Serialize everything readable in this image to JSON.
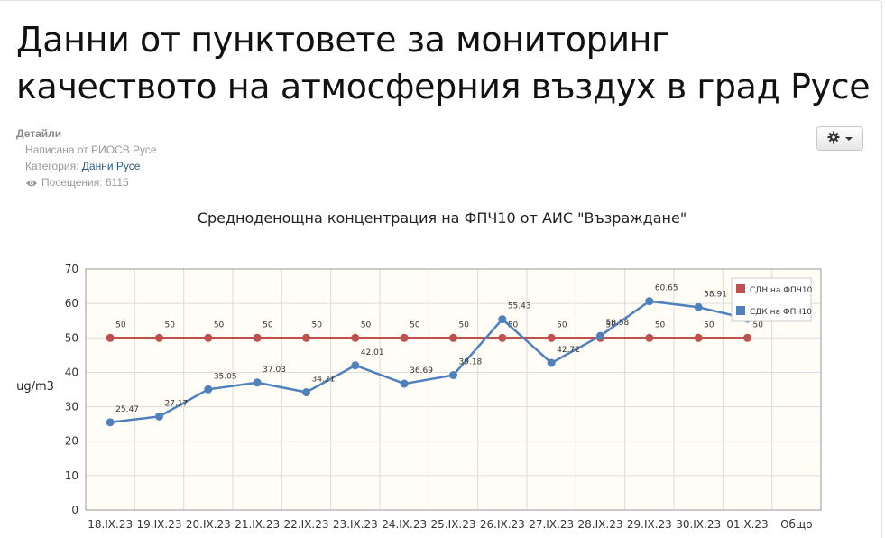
{
  "article": {
    "title": "Данни от пунктовете за мониторинг качеството на атмосферния въздух в град Русе",
    "details_label": "Детайли",
    "author": "Написана от РИОСВ Русе",
    "category_prefix": "Категория: ",
    "category_link": "Данни Русе",
    "hits": "Посещения: 6115"
  },
  "icons": {
    "gear": "gear-icon",
    "caret": "caret-down-icon",
    "eye": "eye-icon"
  },
  "chart_data": {
    "type": "line",
    "title": "Средноденощна концентрация на ФПЧ10 от АИС \"Възраждане\"",
    "ylabel": "ug/m3",
    "xlabel": "",
    "ylim": [
      0,
      70
    ],
    "yticks": [
      0,
      10,
      20,
      30,
      40,
      50,
      60,
      70
    ],
    "categories": [
      "18.IX.23",
      "19.IX.23",
      "20.IX.23",
      "21.IX.23",
      "22.IX.23",
      "23.IX.23",
      "24.IX.23",
      "25.IX.23",
      "26.IX.23",
      "27.IX.23",
      "28.IX.23",
      "29.IX.23",
      "30.IX.23",
      "01.X.23",
      "Общо"
    ],
    "grid": true,
    "legend_position": "top-right",
    "series": [
      {
        "name": "СДН на ФПЧ10",
        "color": "#c0504d",
        "values": [
          50,
          50,
          50,
          50,
          50,
          50,
          50,
          50,
          50,
          50,
          50,
          50,
          50,
          50,
          null
        ],
        "labels": [
          "50",
          "50",
          "50",
          "50",
          "50",
          "50",
          "50",
          "50",
          "50",
          "50",
          "50",
          "50",
          "50",
          "50",
          ""
        ]
      },
      {
        "name": "СДК на ФПЧ10",
        "color": "#4f81bd",
        "values": [
          25.47,
          27.17,
          35.05,
          37.03,
          34.21,
          42.01,
          36.69,
          39.18,
          55.43,
          42.72,
          50.58,
          60.65,
          58.91,
          55.58,
          null
        ],
        "labels": [
          "25.47",
          "27.17",
          "35.05",
          "37.03",
          "34.21",
          "42.01",
          "36.69",
          "39.18",
          "55.43",
          "42.72",
          "50.58",
          "60.65",
          "58.91",
          "55.58",
          ""
        ]
      }
    ]
  }
}
